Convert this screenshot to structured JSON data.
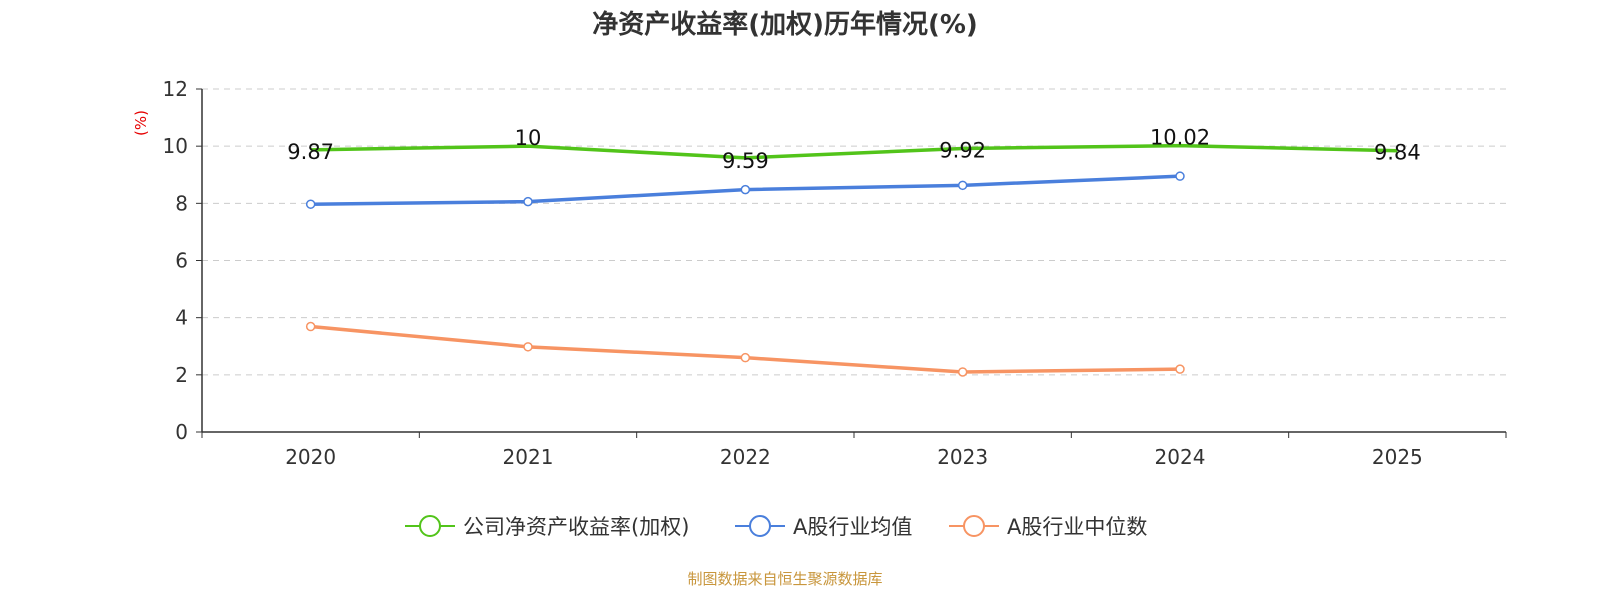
{
  "colors": {
    "company": "#52c41a",
    "mean": "#4a7fdc",
    "median": "#f79463",
    "axis": "#333333",
    "grid": "#cccccc",
    "ylabel": "#e60000",
    "source": "#c8963c"
  },
  "chart_data": {
    "type": "line",
    "title": "净资产收益率(加权)历年情况(%)",
    "ylabel": "(%)",
    "xlabel": "",
    "categories": [
      "2020",
      "2021",
      "2022",
      "2023",
      "2024",
      "2025"
    ],
    "ylim": [
      0,
      12
    ],
    "yticks": [
      0,
      2,
      4,
      6,
      8,
      10,
      12
    ],
    "grid": true,
    "legend_position": "bottom-center",
    "series": [
      {
        "name": "公司净资产收益率(加权)",
        "color_key": "company",
        "show_markers": false,
        "show_labels": true,
        "values": [
          9.87,
          10,
          9.59,
          9.92,
          10.02,
          9.84
        ]
      },
      {
        "name": "A股行业均值",
        "color_key": "mean",
        "show_markers": true,
        "show_labels": false,
        "values": [
          7.97,
          8.06,
          8.48,
          8.63,
          8.95,
          null
        ]
      },
      {
        "name": "A股行业中位数",
        "color_key": "median",
        "show_markers": true,
        "show_labels": false,
        "values": [
          3.69,
          2.98,
          2.6,
          2.1,
          2.2,
          null
        ]
      }
    ]
  },
  "footer": {
    "source": "制图数据来自恒生聚源数据库"
  }
}
